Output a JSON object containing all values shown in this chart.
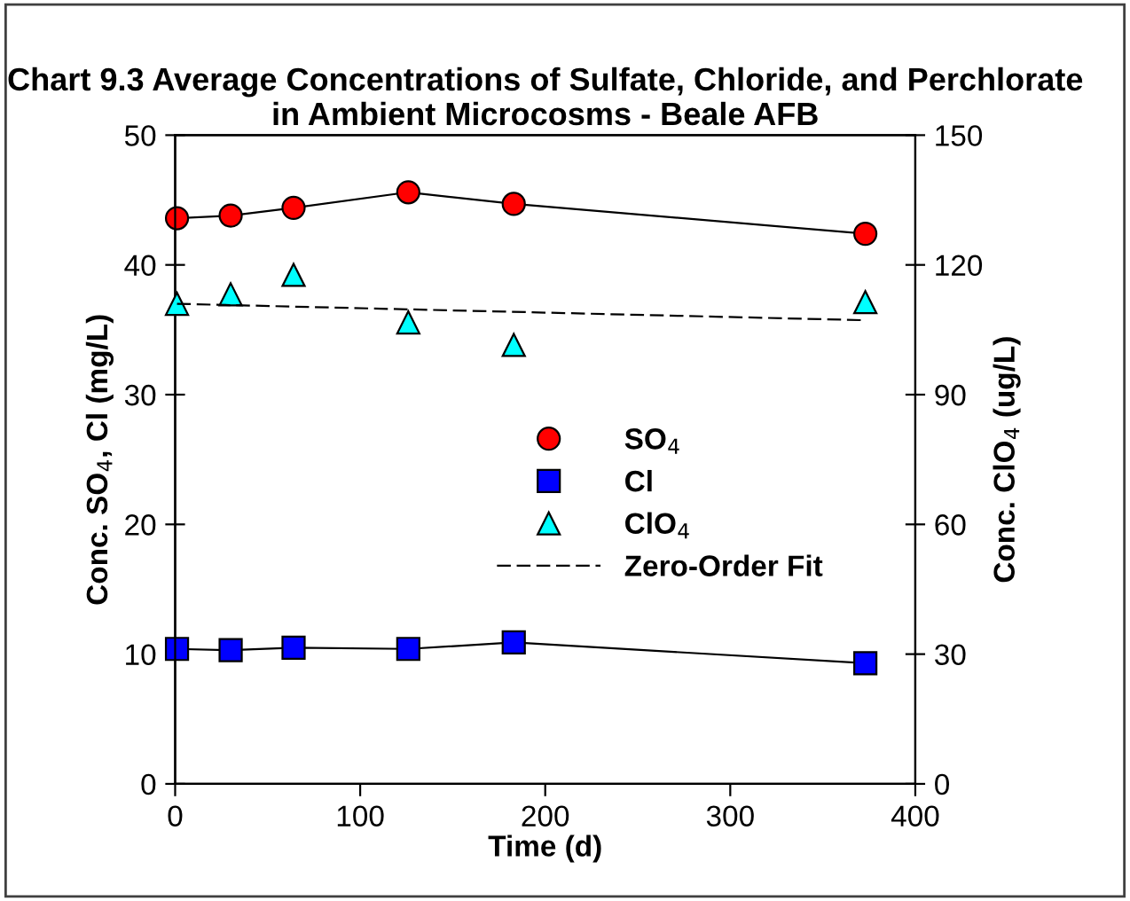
{
  "chart_data": {
    "type": "line",
    "title": "Chart 9.3 Average Concentrations of Sulfate, Chloride, and Perchlorate in Ambient Microcosms - Beale AFB",
    "xlabel": "Time (d)",
    "ylabel": "Conc. SO$_{4}$, Cl (mg/L)",
    "y2label": "Conc. ClO$_{4}$ (ug/L)",
    "x": [
      1,
      30,
      64,
      126,
      183,
      373
    ],
    "series": [
      {
        "name": "SO$_{4}$",
        "color": "#ff0000",
        "marker": "circle",
        "values": [
          43.6,
          43.8,
          44.4,
          45.6,
          44.7,
          42.4
        ]
      },
      {
        "name": "Cl",
        "color": "#0000ff",
        "marker": "square",
        "values": [
          10.4,
          10.3,
          10.5,
          10.4,
          10.9,
          9.3
        ]
      },
      {
        "name": "ClO$_{4}$",
        "type": "scatter",
        "axis": "y2",
        "color": "#00ffff",
        "marker": "triangle",
        "values": [
          111,
          113.2,
          117.7,
          106.7,
          101.5,
          111.4
        ]
      },
      {
        "name": "Zero-Order Fit",
        "type": "line",
        "axis": "y2",
        "color": "#000000",
        "marker": "none",
        "line_style": "dashed",
        "x": [
          1,
          373
        ],
        "values": [
          111,
          107.2
        ]
      }
    ],
    "xlim": [
      0,
      400
    ],
    "xticks": [
      0,
      100,
      200,
      300,
      400
    ],
    "ylim": [
      0,
      50
    ],
    "yticks": [
      0,
      10,
      20,
      30,
      40,
      50
    ],
    "y2lim": [
      0,
      150
    ],
    "y2ticks": [
      0,
      30,
      60,
      90,
      120,
      150
    ],
    "grid": false,
    "legend": "center"
  }
}
